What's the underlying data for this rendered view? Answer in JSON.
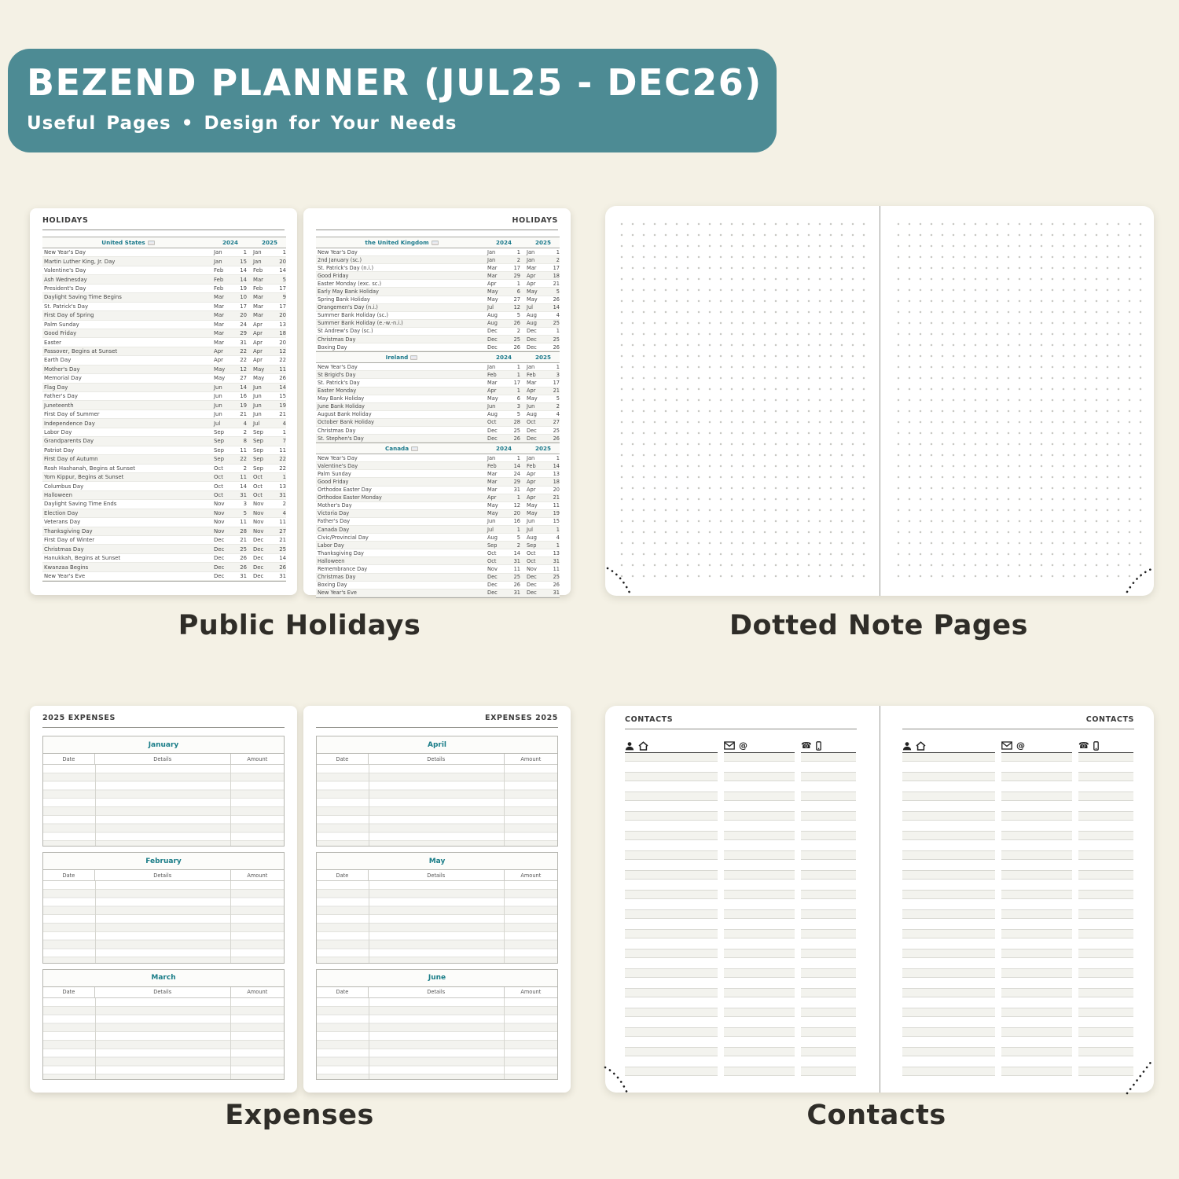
{
  "banner": {
    "title": "BEZEND PLANNER (JUL25 - DEC26)",
    "subtitle": "Useful Pages  •  Design for Your Needs",
    "bg_color": "#4d8b94"
  },
  "captions": {
    "holidays": "Public Holidays",
    "notes": "Dotted Note Pages",
    "expenses": "Expenses",
    "contacts": "Contacts"
  },
  "colors": {
    "background": "#f4f1e5",
    "banner_teal": "#4d8b94",
    "accent_teal": "#1a7d88",
    "caption_text": "#2f2d28"
  },
  "holidays": {
    "page_header": "HOLIDAYS",
    "year_columns": [
      "2024",
      "2025"
    ],
    "flag_icon": "flag-icon",
    "sections": [
      {
        "country": "United States",
        "rows": [
          [
            "New Year's Day",
            "Jan",
            "1",
            "Jan",
            "1"
          ],
          [
            "Martin Luther King, Jr. Day",
            "Jan",
            "15",
            "Jan",
            "20"
          ],
          [
            "Valentine's Day",
            "Feb",
            "14",
            "Feb",
            "14"
          ],
          [
            "Ash Wednesday",
            "Feb",
            "14",
            "Mar",
            "5"
          ],
          [
            "President's Day",
            "Feb",
            "19",
            "Feb",
            "17"
          ],
          [
            "Daylight Saving Time Begins",
            "Mar",
            "10",
            "Mar",
            "9"
          ],
          [
            "St. Patrick's Day",
            "Mar",
            "17",
            "Mar",
            "17"
          ],
          [
            "First Day of Spring",
            "Mar",
            "20",
            "Mar",
            "20"
          ],
          [
            "Palm Sunday",
            "Mar",
            "24",
            "Apr",
            "13"
          ],
          [
            "Good Friday",
            "Mar",
            "29",
            "Apr",
            "18"
          ],
          [
            "Easter",
            "Mar",
            "31",
            "Apr",
            "20"
          ],
          [
            "Passover, Begins at Sunset",
            "Apr",
            "22",
            "Apr",
            "12"
          ],
          [
            "Earth Day",
            "Apr",
            "22",
            "Apr",
            "22"
          ],
          [
            "Mother's Day",
            "May",
            "12",
            "May",
            "11"
          ],
          [
            "Memorial Day",
            "May",
            "27",
            "May",
            "26"
          ],
          [
            "Flag Day",
            "Jun",
            "14",
            "Jun",
            "14"
          ],
          [
            "Father's Day",
            "Jun",
            "16",
            "Jun",
            "15"
          ],
          [
            "Juneteenth",
            "Jun",
            "19",
            "Jun",
            "19"
          ],
          [
            "First Day of Summer",
            "Jun",
            "21",
            "Jun",
            "21"
          ],
          [
            "Independence Day",
            "Jul",
            "4",
            "Jul",
            "4"
          ],
          [
            "Labor Day",
            "Sep",
            "2",
            "Sep",
            "1"
          ],
          [
            "Grandparents Day",
            "Sep",
            "8",
            "Sep",
            "7"
          ],
          [
            "Patriot Day",
            "Sep",
            "11",
            "Sep",
            "11"
          ],
          [
            "First Day of Autumn",
            "Sep",
            "22",
            "Sep",
            "22"
          ],
          [
            "Rosh Hashanah, Begins at Sunset",
            "Oct",
            "2",
            "Sep",
            "22"
          ],
          [
            "Yom Kippur, Begins at Sunset",
            "Oct",
            "11",
            "Oct",
            "1"
          ],
          [
            "Columbus Day",
            "Oct",
            "14",
            "Oct",
            "13"
          ],
          [
            "Halloween",
            "Oct",
            "31",
            "Oct",
            "31"
          ],
          [
            "Daylight Saving Time Ends",
            "Nov",
            "3",
            "Nov",
            "2"
          ],
          [
            "Election Day",
            "Nov",
            "5",
            "Nov",
            "4"
          ],
          [
            "Veterans Day",
            "Nov",
            "11",
            "Nov",
            "11"
          ],
          [
            "Thanksgiving Day",
            "Nov",
            "28",
            "Nov",
            "27"
          ],
          [
            "First Day of Winter",
            "Dec",
            "21",
            "Dec",
            "21"
          ],
          [
            "Christmas Day",
            "Dec",
            "25",
            "Dec",
            "25"
          ],
          [
            "Hanukkah, Begins at Sunset",
            "Dec",
            "26",
            "Dec",
            "14"
          ],
          [
            "Kwanzaa Begins",
            "Dec",
            "26",
            "Dec",
            "26"
          ],
          [
            "New Year's Eve",
            "Dec",
            "31",
            "Dec",
            "31"
          ]
        ]
      },
      {
        "country": "the United Kingdom",
        "rows": [
          [
            "New Year's Day",
            "Jan",
            "1",
            "Jan",
            "1"
          ],
          [
            "2nd January (sc.)",
            "Jan",
            "2",
            "Jan",
            "2"
          ],
          [
            "St. Patrick's Day (n.i.)",
            "Mar",
            "17",
            "Mar",
            "17"
          ],
          [
            "Good Friday",
            "Mar",
            "29",
            "Apr",
            "18"
          ],
          [
            "Easter Monday (exc. sc.)",
            "Apr",
            "1",
            "Apr",
            "21"
          ],
          [
            "Early May Bank Holiday",
            "May",
            "6",
            "May",
            "5"
          ],
          [
            "Spring Bank Holiday",
            "May",
            "27",
            "May",
            "26"
          ],
          [
            "Orangemen's Day (n.i.)",
            "Jul",
            "12",
            "Jul",
            "14"
          ],
          [
            "Summer Bank Holiday (sc.)",
            "Aug",
            "5",
            "Aug",
            "4"
          ],
          [
            "Summer Bank Holiday (e.-w.-n.i.)",
            "Aug",
            "26",
            "Aug",
            "25"
          ],
          [
            "St Andrew's Day (sc.)",
            "Dec",
            "2",
            "Dec",
            "1"
          ],
          [
            "Christmas Day",
            "Dec",
            "25",
            "Dec",
            "25"
          ],
          [
            "Boxing Day",
            "Dec",
            "26",
            "Dec",
            "26"
          ]
        ]
      },
      {
        "country": "Ireland",
        "rows": [
          [
            "New Year's Day",
            "Jan",
            "1",
            "Jan",
            "1"
          ],
          [
            "St Brigid's Day",
            "Feb",
            "1",
            "Feb",
            "3"
          ],
          [
            "St. Patrick's Day",
            "Mar",
            "17",
            "Mar",
            "17"
          ],
          [
            "Easter Monday",
            "Apr",
            "1",
            "Apr",
            "21"
          ],
          [
            "May Bank Holiday",
            "May",
            "6",
            "May",
            "5"
          ],
          [
            "June Bank Holiday",
            "Jun",
            "3",
            "Jun",
            "2"
          ],
          [
            "August Bank Holiday",
            "Aug",
            "5",
            "Aug",
            "4"
          ],
          [
            "October Bank Holiday",
            "Oct",
            "28",
            "Oct",
            "27"
          ],
          [
            "Christmas Day",
            "Dec",
            "25",
            "Dec",
            "25"
          ],
          [
            "St. Stephen's Day",
            "Dec",
            "26",
            "Dec",
            "26"
          ]
        ]
      },
      {
        "country": "Canada",
        "rows": [
          [
            "New Year's Day",
            "Jan",
            "1",
            "Jan",
            "1"
          ],
          [
            "Valentine's Day",
            "Feb",
            "14",
            "Feb",
            "14"
          ],
          [
            "Palm Sunday",
            "Mar",
            "24",
            "Apr",
            "13"
          ],
          [
            "Good Friday",
            "Mar",
            "29",
            "Apr",
            "18"
          ],
          [
            "Orthodox Easter Day",
            "Mar",
            "31",
            "Apr",
            "20"
          ],
          [
            "Orthodox Easter Monday",
            "Apr",
            "1",
            "Apr",
            "21"
          ],
          [
            "Mother's Day",
            "May",
            "12",
            "May",
            "11"
          ],
          [
            "Victoria Day",
            "May",
            "20",
            "May",
            "19"
          ],
          [
            "Father's Day",
            "Jun",
            "16",
            "Jun",
            "15"
          ],
          [
            "Canada Day",
            "Jul",
            "1",
            "Jul",
            "1"
          ],
          [
            "Civic/Provincial Day",
            "Aug",
            "5",
            "Aug",
            "4"
          ],
          [
            "Labor Day",
            "Sep",
            "2",
            "Sep",
            "1"
          ],
          [
            "Thanksgiving Day",
            "Oct",
            "14",
            "Oct",
            "13"
          ],
          [
            "Halloween",
            "Oct",
            "31",
            "Oct",
            "31"
          ],
          [
            "Remembrance Day",
            "Nov",
            "11",
            "Nov",
            "11"
          ],
          [
            "Christmas Day",
            "Dec",
            "25",
            "Dec",
            "25"
          ],
          [
            "Boxing Day",
            "Dec",
            "26",
            "Dec",
            "26"
          ],
          [
            "New Year's Eve",
            "Dec",
            "31",
            "Dec",
            "31"
          ]
        ]
      }
    ]
  },
  "expenses": {
    "left_header": "2025 EXPENSES",
    "right_header": "EXPENSES 2025",
    "columns": [
      "Date",
      "Details",
      "Amount"
    ],
    "months": [
      "January",
      "February",
      "March",
      "April",
      "May",
      "June"
    ]
  },
  "contacts": {
    "header": "CONTACTS",
    "column_icons": [
      [
        "person-icon",
        "home-icon"
      ],
      [
        "mail-icon",
        "at-icon"
      ],
      [
        "phone-icon",
        "mobile-icon"
      ]
    ]
  }
}
